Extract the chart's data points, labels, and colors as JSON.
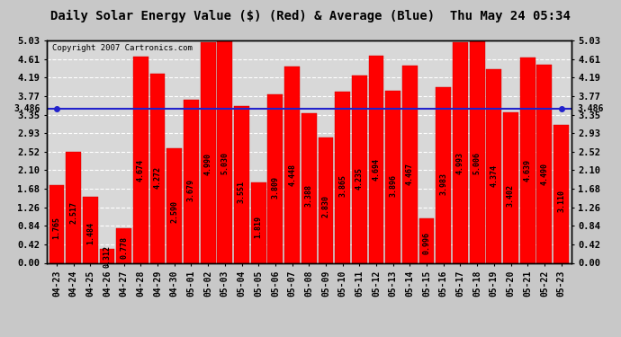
{
  "title": "Daily Solar Energy Value ($) (Red) & Average (Blue)  Thu May 24 05:34",
  "copyright": "Copyright 2007 Cartronics.com",
  "average": 3.486,
  "bar_color": "#FF0000",
  "avg_line_color": "#2222CC",
  "background_color": "#C8C8C8",
  "plot_bg_color": "#D8D8D8",
  "categories": [
    "04-23",
    "04-24",
    "04-25",
    "04-26",
    "04-27",
    "04-28",
    "04-29",
    "04-30",
    "05-01",
    "05-02",
    "05-03",
    "05-04",
    "05-05",
    "05-06",
    "05-07",
    "05-08",
    "05-09",
    "05-10",
    "05-11",
    "05-12",
    "05-13",
    "05-14",
    "05-15",
    "05-16",
    "05-17",
    "05-18",
    "05-19",
    "05-20",
    "05-21",
    "05-22",
    "05-23"
  ],
  "values": [
    1.765,
    2.517,
    1.484,
    0.312,
    0.778,
    4.674,
    4.272,
    2.59,
    3.679,
    4.99,
    5.03,
    3.551,
    1.819,
    3.809,
    4.448,
    3.388,
    2.83,
    3.865,
    4.235,
    4.694,
    3.896,
    4.467,
    0.996,
    3.983,
    4.993,
    5.006,
    4.374,
    3.402,
    4.639,
    4.49,
    3.11
  ],
  "ylim": [
    0,
    5.03
  ],
  "yticks": [
    0.0,
    0.42,
    0.84,
    1.26,
    1.68,
    2.1,
    2.52,
    2.93,
    3.35,
    3.77,
    4.19,
    4.61,
    5.03
  ],
  "grid_color": "#FFFFFF",
  "title_fontsize": 10,
  "label_fontsize": 6.0,
  "tick_fontsize": 7.5,
  "copyright_fontsize": 6.5
}
